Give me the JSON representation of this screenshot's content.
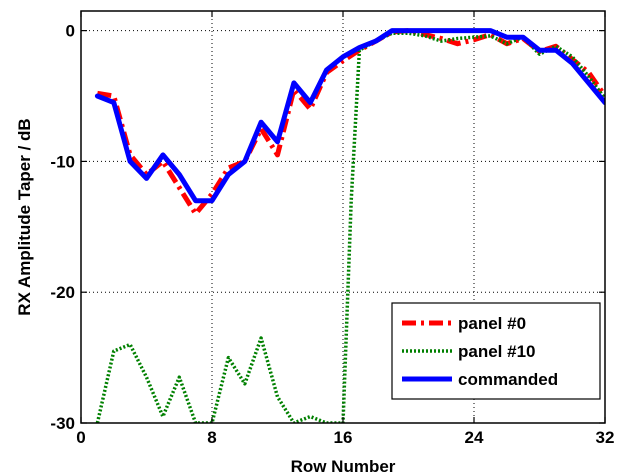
{
  "chart_data": {
    "type": "line",
    "title": "",
    "xlabel": "Row Number",
    "ylabel": "RX Amplitude Taper / dB",
    "xlim": [
      0,
      32
    ],
    "ylim": [
      -30,
      1.5
    ],
    "xticks": [
      0,
      8,
      16,
      24,
      32
    ],
    "yticks": [
      0,
      -10,
      -20,
      -30
    ],
    "xtick_labels": [
      "0",
      "8",
      "16",
      "24",
      "32"
    ],
    "ytick_labels": [
      "0",
      "-10",
      "-20",
      "-30"
    ],
    "grid": true,
    "legend_position": "bottom-right",
    "series": [
      {
        "name": "panel #0",
        "color": "#ff0000",
        "style": "dashdot",
        "x": [
          1,
          2,
          3,
          4,
          5,
          6,
          7,
          8,
          9,
          10,
          11,
          12,
          13,
          14,
          15,
          16,
          17,
          18,
          19,
          20,
          21,
          22,
          23,
          24,
          25,
          26,
          27,
          28,
          29,
          30,
          31,
          32
        ],
        "y": [
          -4.8,
          -5.0,
          -9.5,
          -11.0,
          -10.0,
          -12.0,
          -14.0,
          -12.5,
          -10.5,
          -10.0,
          -7.5,
          -9.5,
          -4.5,
          -6.0,
          -3.2,
          -2.3,
          -1.5,
          -0.8,
          -0.1,
          0,
          -0.3,
          -0.6,
          -1.0,
          -0.7,
          -0.3,
          -1.0,
          -0.6,
          -1.6,
          -1.2,
          -2.2,
          -3.2,
          -5.0
        ]
      },
      {
        "name": "panel #10",
        "color": "#008000",
        "style": "dotted",
        "x": [
          1,
          2,
          3,
          4,
          5,
          6,
          7,
          8,
          9,
          10,
          11,
          12,
          13,
          14,
          15,
          16,
          16.5,
          17,
          18,
          19,
          20,
          21,
          22,
          23,
          24,
          25,
          26,
          27,
          28,
          29,
          30,
          31,
          32
        ],
        "y": [
          -30,
          -24.5,
          -24,
          -26.5,
          -29.5,
          -26.5,
          -30,
          -30,
          -25,
          -27,
          -23.5,
          -28,
          -30,
          -29.5,
          -30,
          -30,
          -13,
          -1.5,
          -0.8,
          -0.2,
          -0.2,
          -0.4,
          -0.8,
          -0.6,
          -0.5,
          -0.4,
          -1.0,
          -0.5,
          -1.8,
          -1.2,
          -2.0,
          -3.5,
          -5.2
        ]
      },
      {
        "name": "commanded",
        "color": "#0000ff",
        "style": "solid",
        "x": [
          1,
          2,
          3,
          4,
          5,
          6,
          7,
          8,
          9,
          10,
          11,
          12,
          13,
          14,
          15,
          16,
          17,
          18,
          19,
          20,
          21,
          22,
          23,
          24,
          25,
          26,
          27,
          28,
          29,
          30,
          31,
          32
        ],
        "y": [
          -5.0,
          -5.5,
          -10.0,
          -11.3,
          -9.5,
          -11.0,
          -13.0,
          -13.0,
          -11.0,
          -10.0,
          -7.0,
          -8.5,
          -4.0,
          -5.5,
          -3.0,
          -2.0,
          -1.3,
          -0.8,
          0,
          0,
          0,
          0,
          0,
          0,
          0,
          -0.5,
          -0.5,
          -1.5,
          -1.5,
          -2.5,
          -4.0,
          -5.5
        ]
      }
    ]
  }
}
